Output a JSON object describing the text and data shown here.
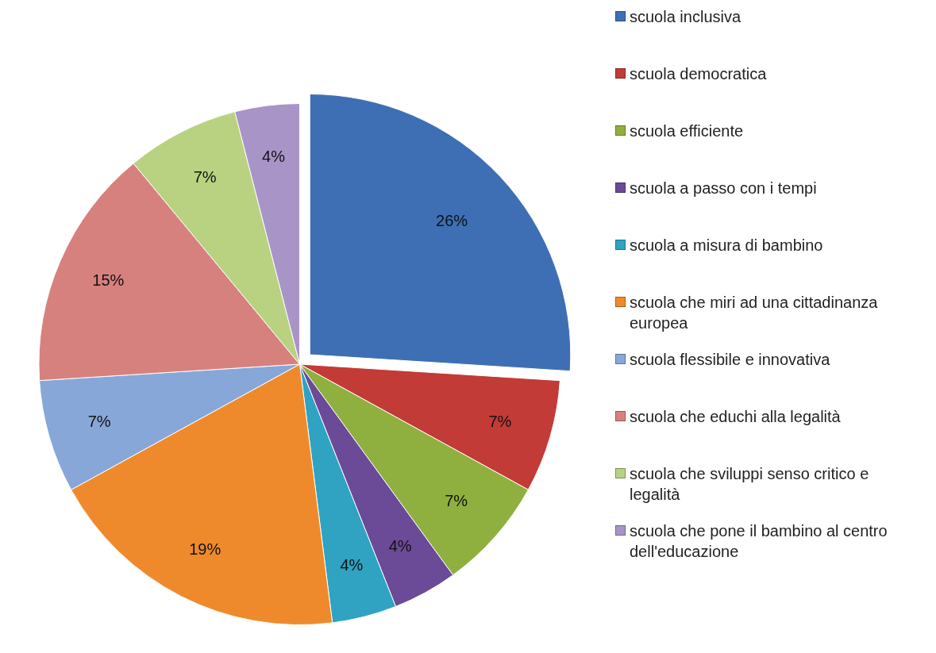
{
  "chart_data": {
    "type": "pie",
    "categories": [
      "scuola inclusiva",
      "scuola democratica",
      "scuola efficiente",
      "scuola a passo con i tempi",
      "scuola a misura di bambino",
      "scuola che miri ad una cittadinanza europea",
      "scuola flessibile e innovativa",
      "scuola che educhi alla legalità",
      "scuola che sviluppi senso critico e legalità",
      "scuola che pone il bambino al centro dell'educazione"
    ],
    "values": [
      26,
      7,
      7,
      4,
      4,
      19,
      7,
      15,
      7,
      4
    ],
    "value_labels": [
      "26%",
      "7%",
      "7%",
      "4%",
      "4%",
      "19%",
      "7%",
      "15%",
      "7%",
      "4%"
    ],
    "colors": [
      "#3e6fb4",
      "#c23b37",
      "#8fb03f",
      "#6b4a98",
      "#2fa3c1",
      "#ef8a2c",
      "#87a7d8",
      "#d7817f",
      "#b8d281",
      "#a994c8"
    ],
    "legend": "right"
  }
}
